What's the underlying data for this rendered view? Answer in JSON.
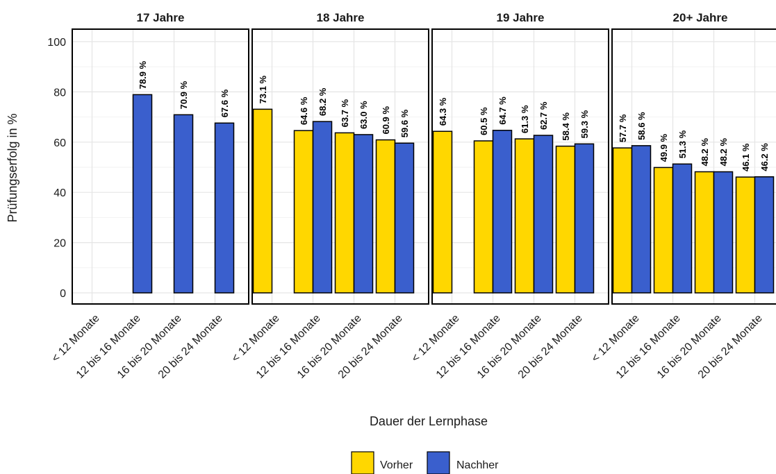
{
  "chart_data": {
    "type": "bar",
    "ylabel": "Prüfungserfolg in %",
    "xlabel": "Dauer der Lernphase",
    "ylim": [
      0,
      100
    ],
    "yticks": [
      0,
      20,
      40,
      60,
      80,
      100
    ],
    "categories": [
      "< 12 Monate",
      "12 bis 16 Monate",
      "16 bis 20 Monate",
      "20 bis 24 Monate"
    ],
    "series_names": [
      "Vorher",
      "Nachher"
    ],
    "colors": {
      "Vorher": "#FFD700",
      "Nachher": "#3A5FCD"
    },
    "legend": {
      "position": "bottom",
      "items": [
        "Vorher",
        "Nachher"
      ]
    },
    "grid": true,
    "panels": [
      {
        "title": "17 Jahre",
        "series": [
          {
            "name": "Vorher",
            "values": [
              null,
              null,
              null,
              null
            ]
          },
          {
            "name": "Nachher",
            "values": [
              null,
              78.9,
              70.9,
              67.6
            ]
          }
        ]
      },
      {
        "title": "18 Jahre",
        "series": [
          {
            "name": "Vorher",
            "values": [
              73.1,
              64.6,
              63.7,
              60.9
            ]
          },
          {
            "name": "Nachher",
            "values": [
              null,
              68.2,
              63.0,
              59.6
            ]
          }
        ]
      },
      {
        "title": "19 Jahre",
        "series": [
          {
            "name": "Vorher",
            "values": [
              64.3,
              60.5,
              61.3,
              58.4
            ]
          },
          {
            "name": "Nachher",
            "values": [
              null,
              64.7,
              62.7,
              59.3
            ]
          }
        ]
      },
      {
        "title": "20+ Jahre",
        "series": [
          {
            "name": "Vorher",
            "values": [
              57.7,
              49.9,
              48.2,
              46.1
            ]
          },
          {
            "name": "Nachher",
            "values": [
              58.6,
              51.3,
              48.2,
              46.2
            ]
          }
        ]
      }
    ]
  }
}
